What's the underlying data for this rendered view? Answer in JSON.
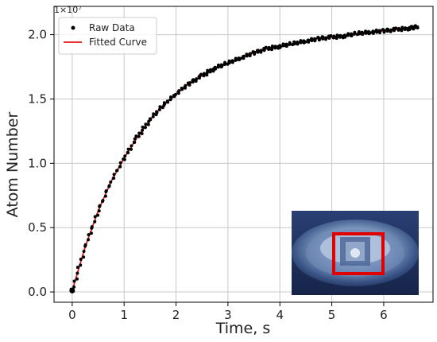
{
  "chart_data": {
    "type": "scatter",
    "title": "",
    "xlabel": "Time, s",
    "ylabel": "Atom Number",
    "y_scale_label": "1×10⁷",
    "xlim": [
      -0.35,
      6.95
    ],
    "ylim": [
      -0.08,
      2.22
    ],
    "x_ticks": [
      0,
      1,
      2,
      3,
      4,
      5,
      6
    ],
    "x_tick_labels": [
      "0",
      "1",
      "2",
      "3",
      "4",
      "5",
      "6"
    ],
    "y_ticks": [
      0.0,
      0.5,
      1.0,
      1.5,
      2.0
    ],
    "y_tick_labels": [
      "0.0",
      "0.5",
      "1.0",
      "1.5",
      "2.0"
    ],
    "grid": true,
    "legend_position": "top-left",
    "series": [
      {
        "name": "Raw Data",
        "kind": "scatter",
        "color": "#000000",
        "x": [
          0.0,
          0.25,
          0.5,
          0.75,
          1.0,
          1.25,
          1.5,
          1.75,
          2.0,
          2.25,
          2.5,
          2.75,
          3.0,
          3.25,
          3.5,
          3.75,
          4.0,
          4.25,
          4.5,
          4.75,
          5.0,
          5.25,
          5.5,
          5.75,
          6.0,
          6.25,
          6.5,
          6.65
        ],
        "y": [
          0.01,
          0.35,
          0.63,
          0.86,
          1.04,
          1.2,
          1.34,
          1.45,
          1.54,
          1.62,
          1.68,
          1.74,
          1.78,
          1.82,
          1.86,
          1.89,
          1.91,
          1.93,
          1.95,
          1.97,
          1.98,
          1.99,
          2.01,
          2.02,
          2.03,
          2.04,
          2.05,
          2.06
        ]
      },
      {
        "name": "Fitted Curve",
        "kind": "line",
        "color": "#e41a1c",
        "x": [
          0.0,
          0.25,
          0.5,
          0.75,
          1.0,
          1.25,
          1.5,
          1.75,
          2.0,
          2.25,
          2.5,
          2.75,
          3.0,
          3.25,
          3.5,
          3.75,
          4.0,
          4.25,
          4.5,
          4.75,
          5.0,
          5.25,
          5.5,
          5.75,
          6.0,
          6.25,
          6.5,
          6.65
        ],
        "y": [
          0.01,
          0.35,
          0.63,
          0.86,
          1.04,
          1.2,
          1.34,
          1.45,
          1.54,
          1.62,
          1.68,
          1.74,
          1.78,
          1.82,
          1.86,
          1.89,
          1.91,
          1.93,
          1.95,
          1.97,
          1.98,
          1.99,
          2.01,
          2.02,
          2.03,
          2.04,
          2.05,
          2.06
        ]
      }
    ]
  },
  "inset": {
    "description_icon": "photo-icon",
    "highlight_color": "#e00000"
  }
}
